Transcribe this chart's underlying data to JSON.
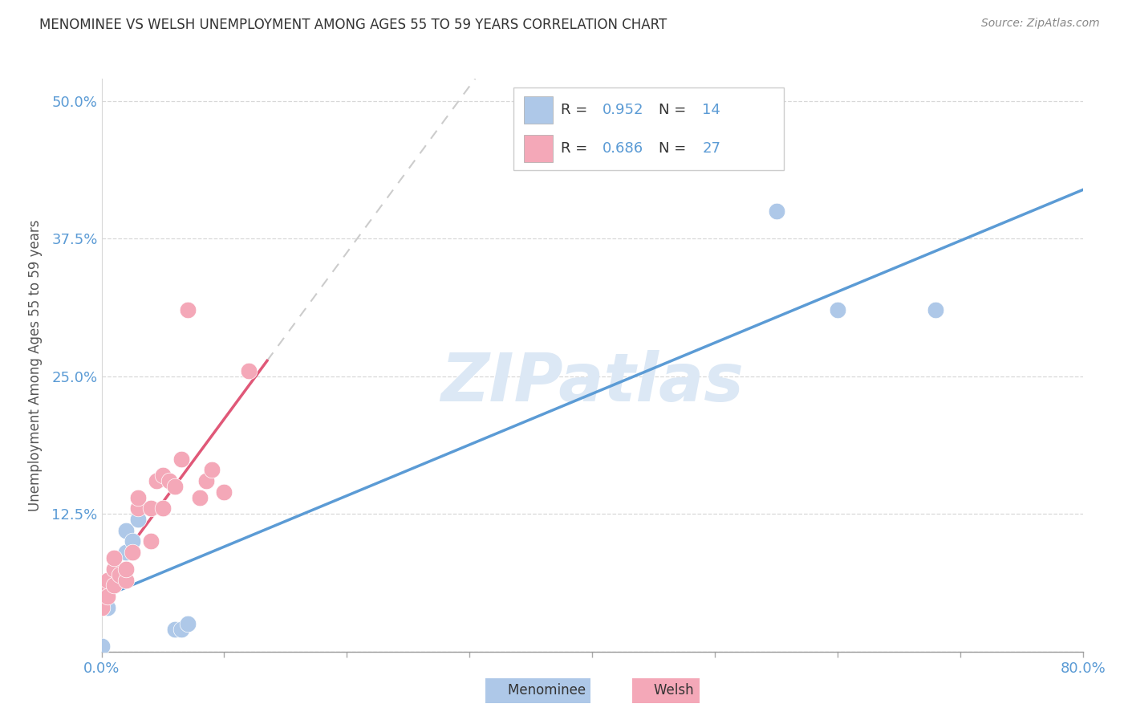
{
  "title": "MENOMINEE VS WELSH UNEMPLOYMENT AMONG AGES 55 TO 59 YEARS CORRELATION CHART",
  "source": "Source: ZipAtlas.com",
  "ylabel": "Unemployment Among Ages 55 to 59 years",
  "xlim": [
    0.0,
    0.8
  ],
  "ylim": [
    0.0,
    0.52
  ],
  "yticks": [
    0.0,
    0.125,
    0.25,
    0.375,
    0.5
  ],
  "ytick_labels": [
    "",
    "12.5%",
    "25.0%",
    "37.5%",
    "50.0%"
  ],
  "xticks": [
    0.0,
    0.1,
    0.2,
    0.3,
    0.4,
    0.5,
    0.6,
    0.7,
    0.8
  ],
  "xtick_labels": [
    "0.0%",
    "",
    "",
    "",
    "",
    "",
    "",
    "",
    "80.0%"
  ],
  "menominee_R": 0.952,
  "menominee_N": 14,
  "welsh_R": 0.686,
  "welsh_N": 27,
  "menominee_color": "#aec8e8",
  "welsh_color": "#f4a8b8",
  "menominee_line_color": "#5b9bd5",
  "welsh_line_color": "#e05878",
  "tick_color": "#5b9bd5",
  "watermark": "ZIPatlas",
  "watermark_color": "#dce8f5",
  "legend_text_color": "#5b9bd5",
  "menominee_x": [
    0.0,
    0.005,
    0.01,
    0.015,
    0.02,
    0.02,
    0.025,
    0.03,
    0.06,
    0.065,
    0.07,
    0.55,
    0.6,
    0.68
  ],
  "menominee_y": [
    0.005,
    0.04,
    0.06,
    0.07,
    0.09,
    0.11,
    0.1,
    0.12,
    0.02,
    0.02,
    0.025,
    0.4,
    0.31,
    0.31
  ],
  "welsh_x": [
    0.0,
    0.0,
    0.005,
    0.005,
    0.01,
    0.01,
    0.01,
    0.015,
    0.02,
    0.02,
    0.025,
    0.03,
    0.03,
    0.04,
    0.04,
    0.045,
    0.05,
    0.05,
    0.055,
    0.06,
    0.065,
    0.07,
    0.08,
    0.085,
    0.09,
    0.1,
    0.12
  ],
  "welsh_y": [
    0.04,
    0.06,
    0.05,
    0.065,
    0.06,
    0.075,
    0.085,
    0.07,
    0.065,
    0.075,
    0.09,
    0.13,
    0.14,
    0.1,
    0.13,
    0.155,
    0.13,
    0.16,
    0.155,
    0.15,
    0.175,
    0.31,
    0.14,
    0.155,
    0.165,
    0.145,
    0.255
  ],
  "welsh_line_xmax": 0.135,
  "welsh_line_xmin": 0.0
}
